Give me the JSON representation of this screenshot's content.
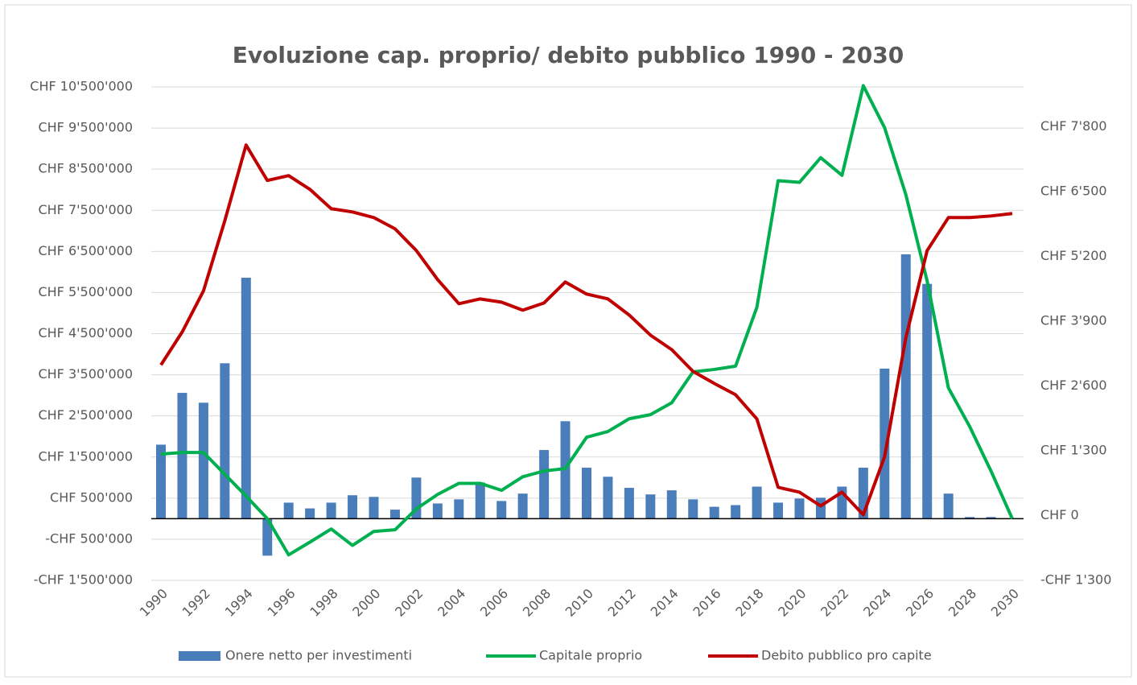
{
  "chart_data": {
    "type": "bar_line",
    "title": "Evoluzione cap. proprio/ debito pubblico 1990 - 2030",
    "categories": [
      "1990",
      null,
      "1992",
      null,
      "1994",
      null,
      "1996",
      null,
      "1998",
      null,
      "2000",
      null,
      "2002",
      null,
      "2004",
      null,
      "2006",
      null,
      "2008",
      null,
      "2010",
      null,
      "2012",
      null,
      "2014",
      null,
      "2016",
      null,
      "2018",
      null,
      "2020",
      null,
      "2022",
      null,
      "2024",
      null,
      "2026",
      null,
      "2028",
      null,
      "2030"
    ],
    "series": [
      {
        "name": "Onere netto per investimenti",
        "type": "bar",
        "color": "#4a7ebb",
        "values": [
          1800000,
          3060000,
          2820000,
          3780000,
          5860000,
          -900000,
          390000,
          250000,
          390000,
          570000,
          530000,
          220000,
          1000000,
          370000,
          470000,
          880000,
          430000,
          610000,
          1670000,
          2370000,
          1240000,
          1020000,
          750000,
          590000,
          690000,
          470000,
          290000,
          330000,
          780000,
          390000,
          490000,
          510000,
          780000,
          1240000,
          3650000,
          6430000,
          5710000,
          610000,
          40000,
          40000,
          0
        ]
      },
      {
        "name": "Capitale proprio",
        "type": "line",
        "color": "#00b050",
        "values": [
          1570000,
          1610000,
          1610000,
          1080000,
          550000,
          0,
          -880000,
          -570000,
          -250000,
          -650000,
          -310000,
          -270000,
          240000,
          590000,
          860000,
          860000,
          690000,
          1020000,
          1160000,
          1220000,
          1980000,
          2120000,
          2430000,
          2530000,
          2820000,
          3570000,
          3630000,
          3710000,
          5140000,
          8220000,
          8180000,
          8780000,
          8350000,
          10530000,
          9510000,
          7880000,
          5780000,
          3180000,
          2240000,
          1160000,
          0
        ]
      },
      {
        "name": "Debito pubblico pro capite",
        "type": "line",
        "axis": "y2",
        "color": "#c00000",
        "values": [
          3022,
          3684,
          4509,
          5915,
          7434,
          6723,
          6820,
          6545,
          6157,
          6092,
          5979,
          5753,
          5317,
          4735,
          4250,
          4347,
          4282,
          4121,
          4266,
          4686,
          4444,
          4347,
          4024,
          3620,
          3329,
          2893,
          2650,
          2424,
          1939,
          566,
          469,
          194,
          469,
          16,
          1180,
          3571,
          5317,
          5979,
          5979,
          6011,
          6060
        ]
      }
    ],
    "ylim": [
      -1500000,
      10500000
    ],
    "yticks": [
      {
        "value": -1500000,
        "label": "-CHF 1'500'000"
      },
      {
        "value": -500000,
        "label": "-CHF 500'000"
      },
      {
        "value": 500000,
        "label": "CHF 500'000"
      },
      {
        "value": 1500000,
        "label": "CHF 1'500'000"
      },
      {
        "value": 2500000,
        "label": "CHF 2'500'000"
      },
      {
        "value": 3500000,
        "label": "CHF 3'500'000"
      },
      {
        "value": 4500000,
        "label": "CHF 4'500'000"
      },
      {
        "value": 5500000,
        "label": "CHF 5'500'000"
      },
      {
        "value": 6500000,
        "label": "CHF 6'500'000"
      },
      {
        "value": 7500000,
        "label": "CHF 7'500'000"
      },
      {
        "value": 8500000,
        "label": "CHF 8'500'000"
      },
      {
        "value": 9500000,
        "label": "CHF 9'500'000"
      },
      {
        "value": 10500000,
        "label": "CHF 10'500'000"
      }
    ],
    "y2lim": [
      -1300,
      8600
    ],
    "y2ticks": [
      {
        "value": -1300,
        "label": "-CHF 1'300"
      },
      {
        "value": 0,
        "label": "CHF 0"
      },
      {
        "value": 1300,
        "label": "CHF 1'300"
      },
      {
        "value": 2600,
        "label": "CHF 2'600"
      },
      {
        "value": 3900,
        "label": "CHF 3'900"
      },
      {
        "value": 5200,
        "label": "CHF 5'200"
      },
      {
        "value": 6500,
        "label": "CHF 6'500"
      },
      {
        "value": 7800,
        "label": "CHF 7'800"
      }
    ],
    "grid": true,
    "legend": "bottom"
  }
}
